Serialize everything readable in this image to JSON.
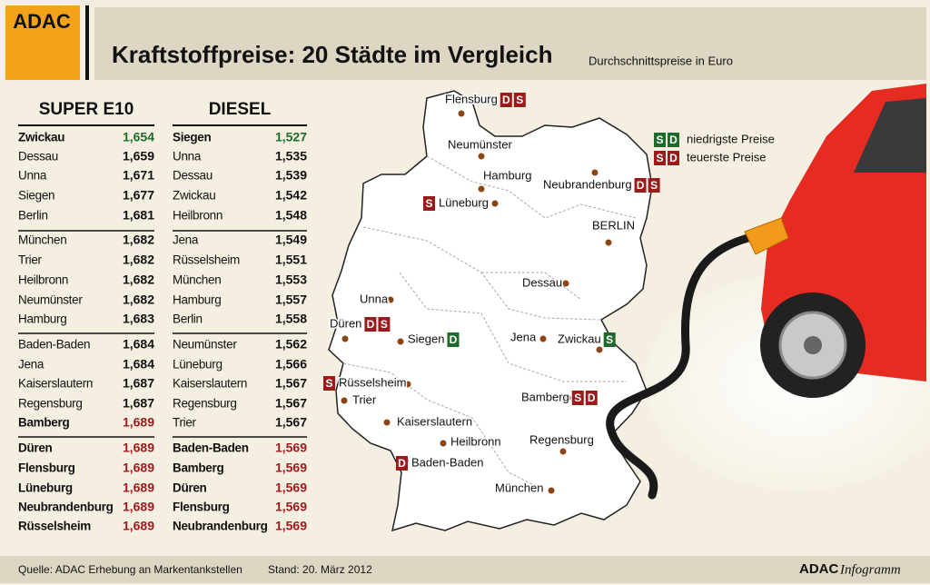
{
  "header": {
    "logo": "ADAC",
    "title": "Kraftstoffpreise: 20 Städte im Vergleich",
    "subtitle": "Durchschnittspreise in Euro"
  },
  "tables": [
    {
      "title": "SUPER E10",
      "lowest_rows": [
        0
      ],
      "highest_rows": [
        14,
        15,
        16,
        17,
        18,
        19
      ],
      "rows": [
        [
          "Zwickau",
          "1,654"
        ],
        [
          "Dessau",
          "1,659"
        ],
        [
          "Unna",
          "1,671"
        ],
        [
          "Siegen",
          "1,677"
        ],
        [
          "Berlin",
          "1,681"
        ],
        [
          "München",
          "1,682"
        ],
        [
          "Trier",
          "1,682"
        ],
        [
          "Heilbronn",
          "1,682"
        ],
        [
          "Neumünster",
          "1,682"
        ],
        [
          "Hamburg",
          "1,683"
        ],
        [
          "Baden-Baden",
          "1,684"
        ],
        [
          "Jena",
          "1,684"
        ],
        [
          "Kaiserslautern",
          "1,687"
        ],
        [
          "Regensburg",
          "1,687"
        ],
        [
          "Bamberg",
          "1,689"
        ],
        [
          "Düren",
          "1,689"
        ],
        [
          "Flensburg",
          "1,689"
        ],
        [
          "Lüneburg",
          "1,689"
        ],
        [
          "Neubrandenburg",
          "1,689"
        ],
        [
          "Rüsselsheim",
          "1,689"
        ]
      ]
    },
    {
      "title": "DIESEL",
      "lowest_rows": [
        0
      ],
      "highest_rows": [
        15,
        16,
        17,
        18,
        19
      ],
      "rows": [
        [
          "Siegen",
          "1,527"
        ],
        [
          "Unna",
          "1,535"
        ],
        [
          "Dessau",
          "1,539"
        ],
        [
          "Zwickau",
          "1,542"
        ],
        [
          "Heilbronn",
          "1,548"
        ],
        [
          "Jena",
          "1,549"
        ],
        [
          "Rüsselsheim",
          "1,551"
        ],
        [
          "München",
          "1,553"
        ],
        [
          "Hamburg",
          "1,557"
        ],
        [
          "Berlin",
          "1,558"
        ],
        [
          "Neumünster",
          "1,562"
        ],
        [
          "Lüneburg",
          "1,566"
        ],
        [
          "Kaiserslautern",
          "1,567"
        ],
        [
          "Regensburg",
          "1,567"
        ],
        [
          "Trier",
          "1,567"
        ],
        [
          "Baden-Baden",
          "1,569"
        ],
        [
          "Bamberg",
          "1,569"
        ],
        [
          "Düren",
          "1,569"
        ],
        [
          "Flensburg",
          "1,569"
        ],
        [
          "Neubrandenburg",
          "1,569"
        ]
      ]
    }
  ],
  "legend": [
    {
      "badges": [
        "S",
        "D"
      ],
      "kind": "low",
      "label": "niedrigste Preise"
    },
    {
      "badges": [
        "S",
        "D"
      ],
      "kind": "high",
      "label": "teuerste Preise"
    }
  ],
  "map": {
    "cities": [
      {
        "label": "Flensburg",
        "badges": [
          {
            "text": "D",
            "kind": "high"
          },
          {
            "text": "S",
            "kind": "high"
          }
        ]
      },
      {
        "label": "Neumünster"
      },
      {
        "label": "Hamburg"
      },
      {
        "label": "Lüneburg",
        "badges": [
          {
            "text": "S",
            "kind": "high"
          }
        ]
      },
      {
        "label": "Neubrandenburg",
        "badges": [
          {
            "text": "D",
            "kind": "high"
          },
          {
            "text": "S",
            "kind": "high"
          }
        ]
      },
      {
        "label": "BERLIN"
      },
      {
        "label": "Dessau"
      },
      {
        "label": "Unna"
      },
      {
        "label": "Düren",
        "badges": [
          {
            "text": "D",
            "kind": "high"
          },
          {
            "text": "S",
            "kind": "high"
          }
        ]
      },
      {
        "label": "Siegen",
        "badges": [
          {
            "text": "D",
            "kind": "low"
          }
        ]
      },
      {
        "label": "Jena"
      },
      {
        "label": "Zwickau",
        "badges": [
          {
            "text": "S",
            "kind": "low"
          }
        ]
      },
      {
        "label": "Rüsselsheim",
        "badges": [
          {
            "text": "S",
            "kind": "high"
          }
        ]
      },
      {
        "label": "Trier"
      },
      {
        "label": "Bamberg",
        "badges": [
          {
            "text": "S",
            "kind": "high"
          },
          {
            "text": "D",
            "kind": "high"
          }
        ]
      },
      {
        "label": "Kaiserslautern"
      },
      {
        "label": "Heilbronn"
      },
      {
        "label": "Regensburg"
      },
      {
        "label": "Baden-Baden",
        "badges": [
          {
            "text": "D",
            "kind": "high"
          }
        ]
      },
      {
        "label": "München"
      }
    ]
  },
  "footer": {
    "source": "Quelle: ADAC Erhebung an Markentankstellen",
    "date": "Stand: 20. März 2012",
    "brand": "ADAC",
    "brand_suffix": "Infogramm"
  }
}
